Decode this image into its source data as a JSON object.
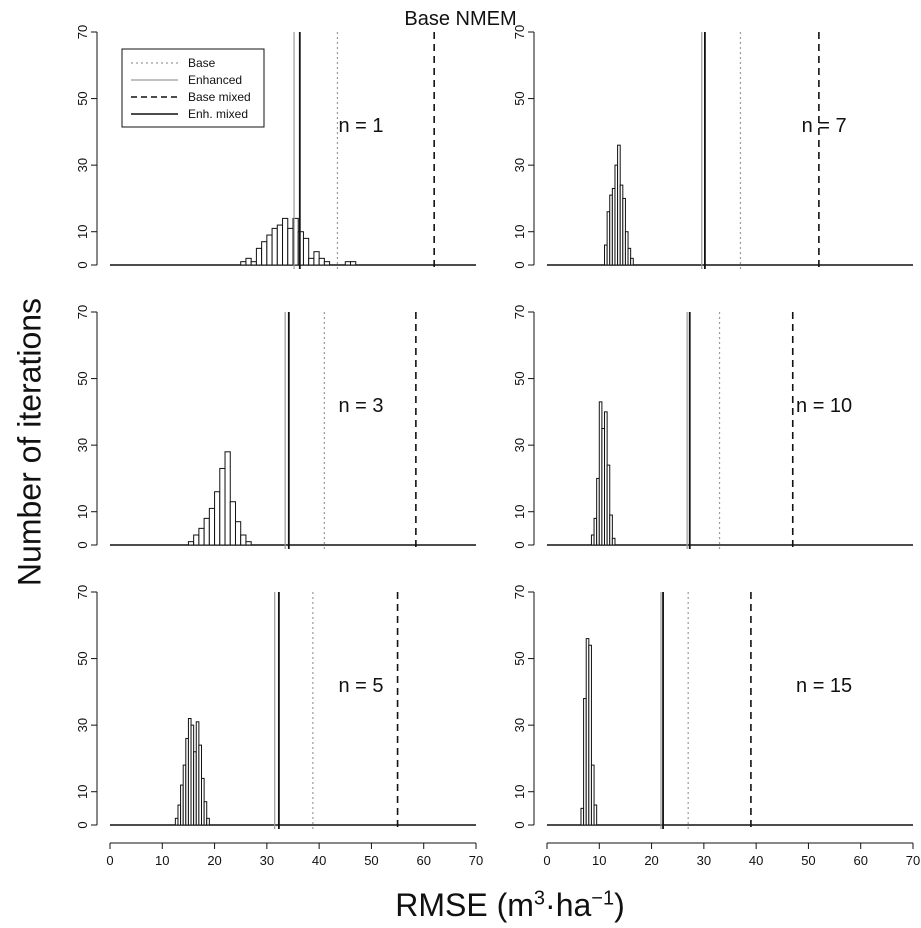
{
  "title": "Base NMEM",
  "ylabel": "Number of iterations",
  "xlabel": {
    "prefix": "RMSE (m",
    "sup1": "3",
    "mid": "·ha",
    "sup2": "−1",
    "suffix": ")"
  },
  "legend": {
    "entries": [
      {
        "label": "Base",
        "style": "dotted-grey"
      },
      {
        "label": "Enhanced",
        "style": "solid-grey"
      },
      {
        "label": "Base mixed",
        "style": "dashed-black"
      },
      {
        "label": "Enh. mixed",
        "style": "solid-black"
      }
    ]
  },
  "colors": {
    "base": "#9a9a9a",
    "enhanced": "#9a9a9a",
    "base_mixed": "#111111",
    "enh_mixed": "#111111",
    "bars": "#111111"
  },
  "chart_data": [
    {
      "type": "bar",
      "panel_label": "n = 1",
      "xlim": [
        0,
        70
      ],
      "ylim": [
        0,
        70
      ],
      "x_ticks": [
        0,
        10,
        20,
        30,
        40,
        50,
        60,
        70
      ],
      "y_ticks": [
        0,
        10,
        30,
        50,
        70
      ],
      "bin_width": 1,
      "bins": [
        [
          25,
          1
        ],
        [
          26,
          2
        ],
        [
          27,
          1
        ],
        [
          28,
          5
        ],
        [
          29,
          7
        ],
        [
          30,
          9
        ],
        [
          31,
          11
        ],
        [
          32,
          12
        ],
        [
          33,
          14
        ],
        [
          34,
          11
        ],
        [
          35,
          14
        ],
        [
          36,
          10
        ],
        [
          37,
          8
        ],
        [
          38,
          2
        ],
        [
          39,
          4
        ],
        [
          40,
          2
        ],
        [
          41,
          1
        ],
        [
          45,
          1
        ],
        [
          46,
          1
        ]
      ],
      "vlines": {
        "base": 43.5,
        "enhanced": 35.2,
        "base_mixed": 62,
        "enh_mixed": 36.3
      }
    },
    {
      "type": "bar",
      "panel_label": "n = 7",
      "xlim": [
        0,
        70
      ],
      "ylim": [
        0,
        70
      ],
      "x_ticks": [
        0,
        10,
        20,
        30,
        40,
        50,
        60,
        70
      ],
      "y_ticks": [
        0,
        10,
        30,
        50,
        70
      ],
      "bin_width": 0.5,
      "bins": [
        [
          11,
          6
        ],
        [
          11.5,
          16
        ],
        [
          12,
          21
        ],
        [
          12.5,
          23
        ],
        [
          13,
          30
        ],
        [
          13.5,
          36
        ],
        [
          14,
          24
        ],
        [
          14.5,
          20
        ],
        [
          15,
          10
        ],
        [
          15.5,
          5
        ],
        [
          16,
          2
        ]
      ],
      "vlines": {
        "base": 37,
        "enhanced": 29.6,
        "base_mixed": 52,
        "enh_mixed": 30.2
      }
    },
    {
      "type": "bar",
      "panel_label": "n = 3",
      "xlim": [
        0,
        70
      ],
      "ylim": [
        0,
        70
      ],
      "x_ticks": [
        0,
        10,
        20,
        30,
        40,
        50,
        60,
        70
      ],
      "y_ticks": [
        0,
        10,
        30,
        50,
        70
      ],
      "bin_width": 1,
      "bins": [
        [
          15,
          1
        ],
        [
          16,
          3
        ],
        [
          17,
          5
        ],
        [
          18,
          8
        ],
        [
          19,
          11
        ],
        [
          20,
          16
        ],
        [
          21,
          23
        ],
        [
          22,
          28
        ],
        [
          23,
          13
        ],
        [
          24,
          7
        ],
        [
          25,
          3
        ],
        [
          26,
          1
        ]
      ],
      "vlines": {
        "base": 41,
        "enhanced": 33.5,
        "base_mixed": 58.5,
        "enh_mixed": 34.2
      }
    },
    {
      "type": "bar",
      "panel_label": "n = 10",
      "xlim": [
        0,
        70
      ],
      "ylim": [
        0,
        70
      ],
      "x_ticks": [
        0,
        10,
        20,
        30,
        40,
        50,
        60,
        70
      ],
      "y_ticks": [
        0,
        10,
        30,
        50,
        70
      ],
      "bin_width": 0.5,
      "bins": [
        [
          8.5,
          3
        ],
        [
          9,
          8
        ],
        [
          9.5,
          20
        ],
        [
          10,
          43
        ],
        [
          10.5,
          35
        ],
        [
          11,
          40
        ],
        [
          11.5,
          24
        ],
        [
          12,
          9
        ],
        [
          12.5,
          2
        ]
      ],
      "vlines": {
        "base": 33,
        "enhanced": 26.8,
        "base_mixed": 47,
        "enh_mixed": 27.3
      }
    },
    {
      "type": "bar",
      "panel_label": "n = 5",
      "xlim": [
        0,
        70
      ],
      "ylim": [
        0,
        70
      ],
      "x_ticks": [
        0,
        10,
        20,
        30,
        40,
        50,
        60,
        70
      ],
      "y_ticks": [
        0,
        10,
        30,
        50,
        70
      ],
      "bin_width": 0.5,
      "bins": [
        [
          12.5,
          2
        ],
        [
          13,
          6
        ],
        [
          13.5,
          12
        ],
        [
          14,
          18
        ],
        [
          14.5,
          26
        ],
        [
          15,
          32
        ],
        [
          15.5,
          30
        ],
        [
          16,
          22
        ],
        [
          16.5,
          31
        ],
        [
          17,
          24
        ],
        [
          17.5,
          14
        ],
        [
          18,
          7
        ],
        [
          18.5,
          2
        ]
      ],
      "vlines": {
        "base": 38.8,
        "enhanced": 31.5,
        "base_mixed": 55,
        "enh_mixed": 32.3
      }
    },
    {
      "type": "bar",
      "panel_label": "n = 15",
      "xlim": [
        0,
        70
      ],
      "ylim": [
        0,
        70
      ],
      "x_ticks": [
        0,
        10,
        20,
        30,
        40,
        50,
        60,
        70
      ],
      "y_ticks": [
        0,
        10,
        30,
        50,
        70
      ],
      "bin_width": 0.5,
      "bins": [
        [
          6.5,
          5
        ],
        [
          7,
          38
        ],
        [
          7.5,
          56
        ],
        [
          8,
          54
        ],
        [
          8.5,
          18
        ],
        [
          9,
          6
        ]
      ],
      "vlines": {
        "base": 27,
        "enhanced": 21.8,
        "base_mixed": 39,
        "enh_mixed": 22.2
      }
    }
  ]
}
